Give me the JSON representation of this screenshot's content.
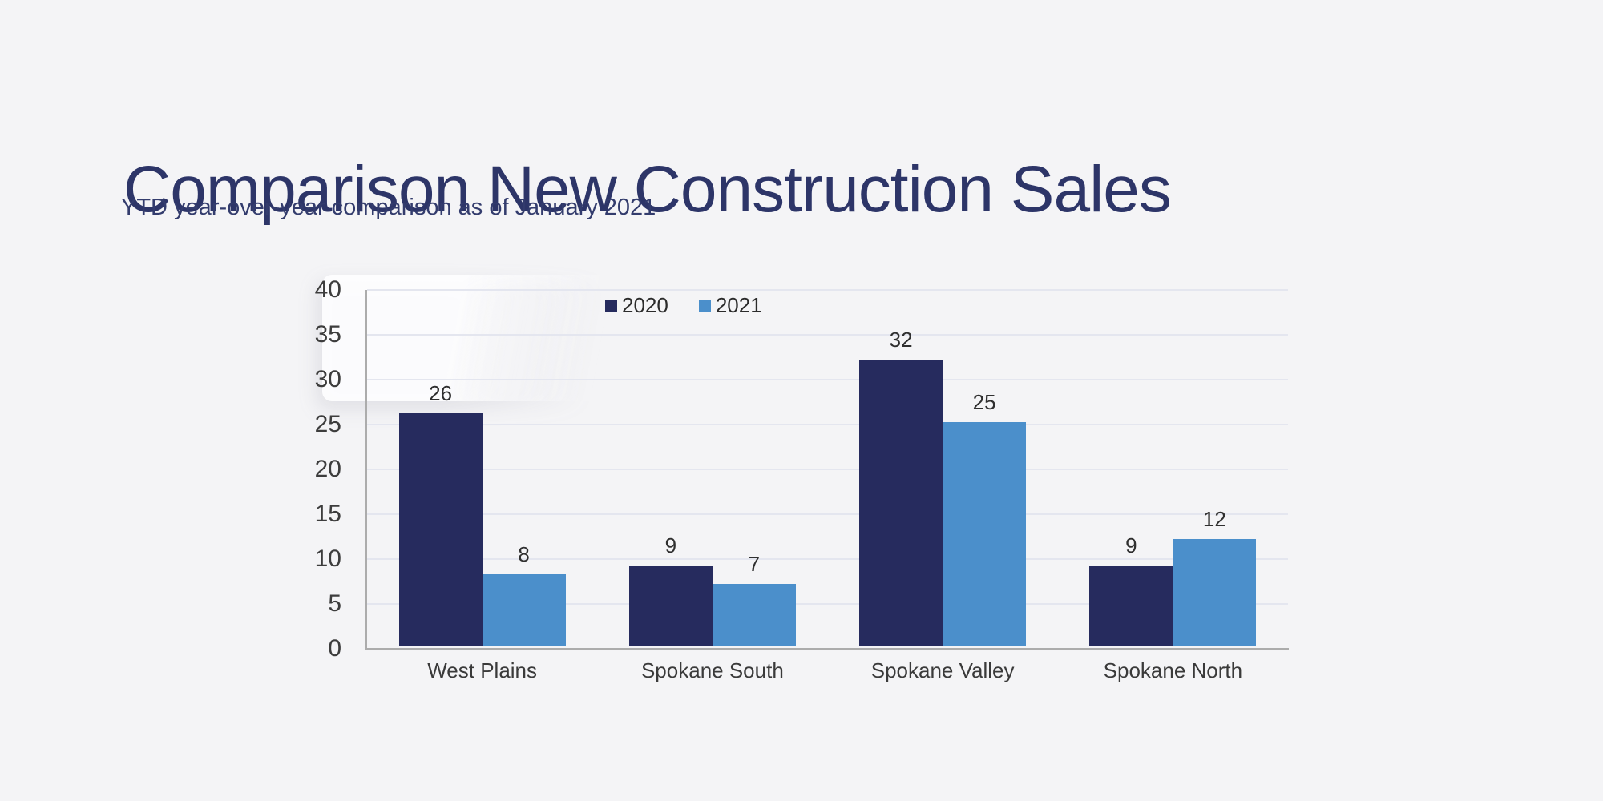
{
  "header": {
    "title": "Comparison New Construction Sales",
    "subtitle": "YTD year-over-year comparison as of January 2021"
  },
  "chart_data": {
    "type": "bar",
    "title": "",
    "xlabel": "",
    "ylabel": "",
    "categories": [
      "West Plains",
      "Spokane South",
      "Spokane Valley",
      "Spokane North"
    ],
    "series": [
      {
        "name": "2020",
        "color": "#262b5e",
        "values": [
          26,
          9,
          32,
          9
        ]
      },
      {
        "name": "2021",
        "color": "#4b8fcb",
        "values": [
          8,
          7,
          25,
          12
        ]
      }
    ],
    "ylim": [
      0,
      40
    ],
    "y_ticks": [
      0,
      5,
      10,
      15,
      20,
      25,
      30,
      35,
      40
    ],
    "grid": true,
    "legend_position": "top-center",
    "data_labels": true
  },
  "colors": {
    "background": "#f4f4f6",
    "title_text": "#2d3568",
    "axis_line": "#acacac",
    "gridline": "#e4e6ef",
    "label_text": "#2f2f2f"
  }
}
